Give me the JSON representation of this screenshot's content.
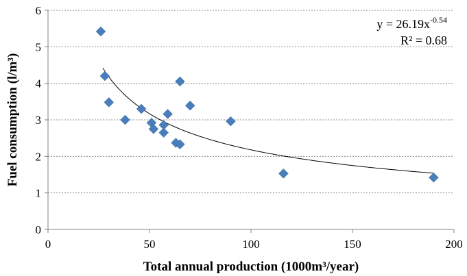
{
  "chart_data": {
    "type": "scatter",
    "title": "",
    "xlabel": "Total annual production (1000m³/year)",
    "ylabel": "Fuel consumption (l/m³)",
    "xlim": [
      0,
      200
    ],
    "ylim": [
      0,
      6
    ],
    "xticks": [
      0,
      50,
      100,
      150,
      200
    ],
    "yticks": [
      0,
      1,
      2,
      3,
      4,
      5,
      6
    ],
    "xtick_labels": [
      "0",
      "50",
      "100",
      "150",
      "200"
    ],
    "ytick_labels": [
      "0",
      "1",
      "2",
      "3",
      "4",
      "5",
      "6"
    ],
    "grid": "horizontal dashed",
    "marker_color": "#4a7ebb",
    "trendline_color": "#000000",
    "series": [
      {
        "points": [
          {
            "x": 26,
            "y": 5.42
          },
          {
            "x": 28,
            "y": 4.2
          },
          {
            "x": 30,
            "y": 3.48
          },
          {
            "x": 38,
            "y": 3.0
          },
          {
            "x": 46,
            "y": 3.3
          },
          {
            "x": 51,
            "y": 2.92
          },
          {
            "x": 52,
            "y": 2.75
          },
          {
            "x": 57,
            "y": 2.86
          },
          {
            "x": 57,
            "y": 2.65
          },
          {
            "x": 59,
            "y": 3.16
          },
          {
            "x": 63,
            "y": 2.37
          },
          {
            "x": 65,
            "y": 2.33
          },
          {
            "x": 65,
            "y": 4.05
          },
          {
            "x": 70,
            "y": 3.39
          },
          {
            "x": 90,
            "y": 2.96
          },
          {
            "x": 116,
            "y": 1.53
          },
          {
            "x": 190,
            "y": 1.42
          }
        ]
      }
    ],
    "trendline": {
      "type": "power",
      "a": 26.19,
      "b": -0.54,
      "x_start": 27,
      "x_end": 190
    },
    "annotations": {
      "equation_base": "y = 26.19x",
      "equation_exponent": "-0.54",
      "r_squared": "R² = 0.68"
    }
  }
}
